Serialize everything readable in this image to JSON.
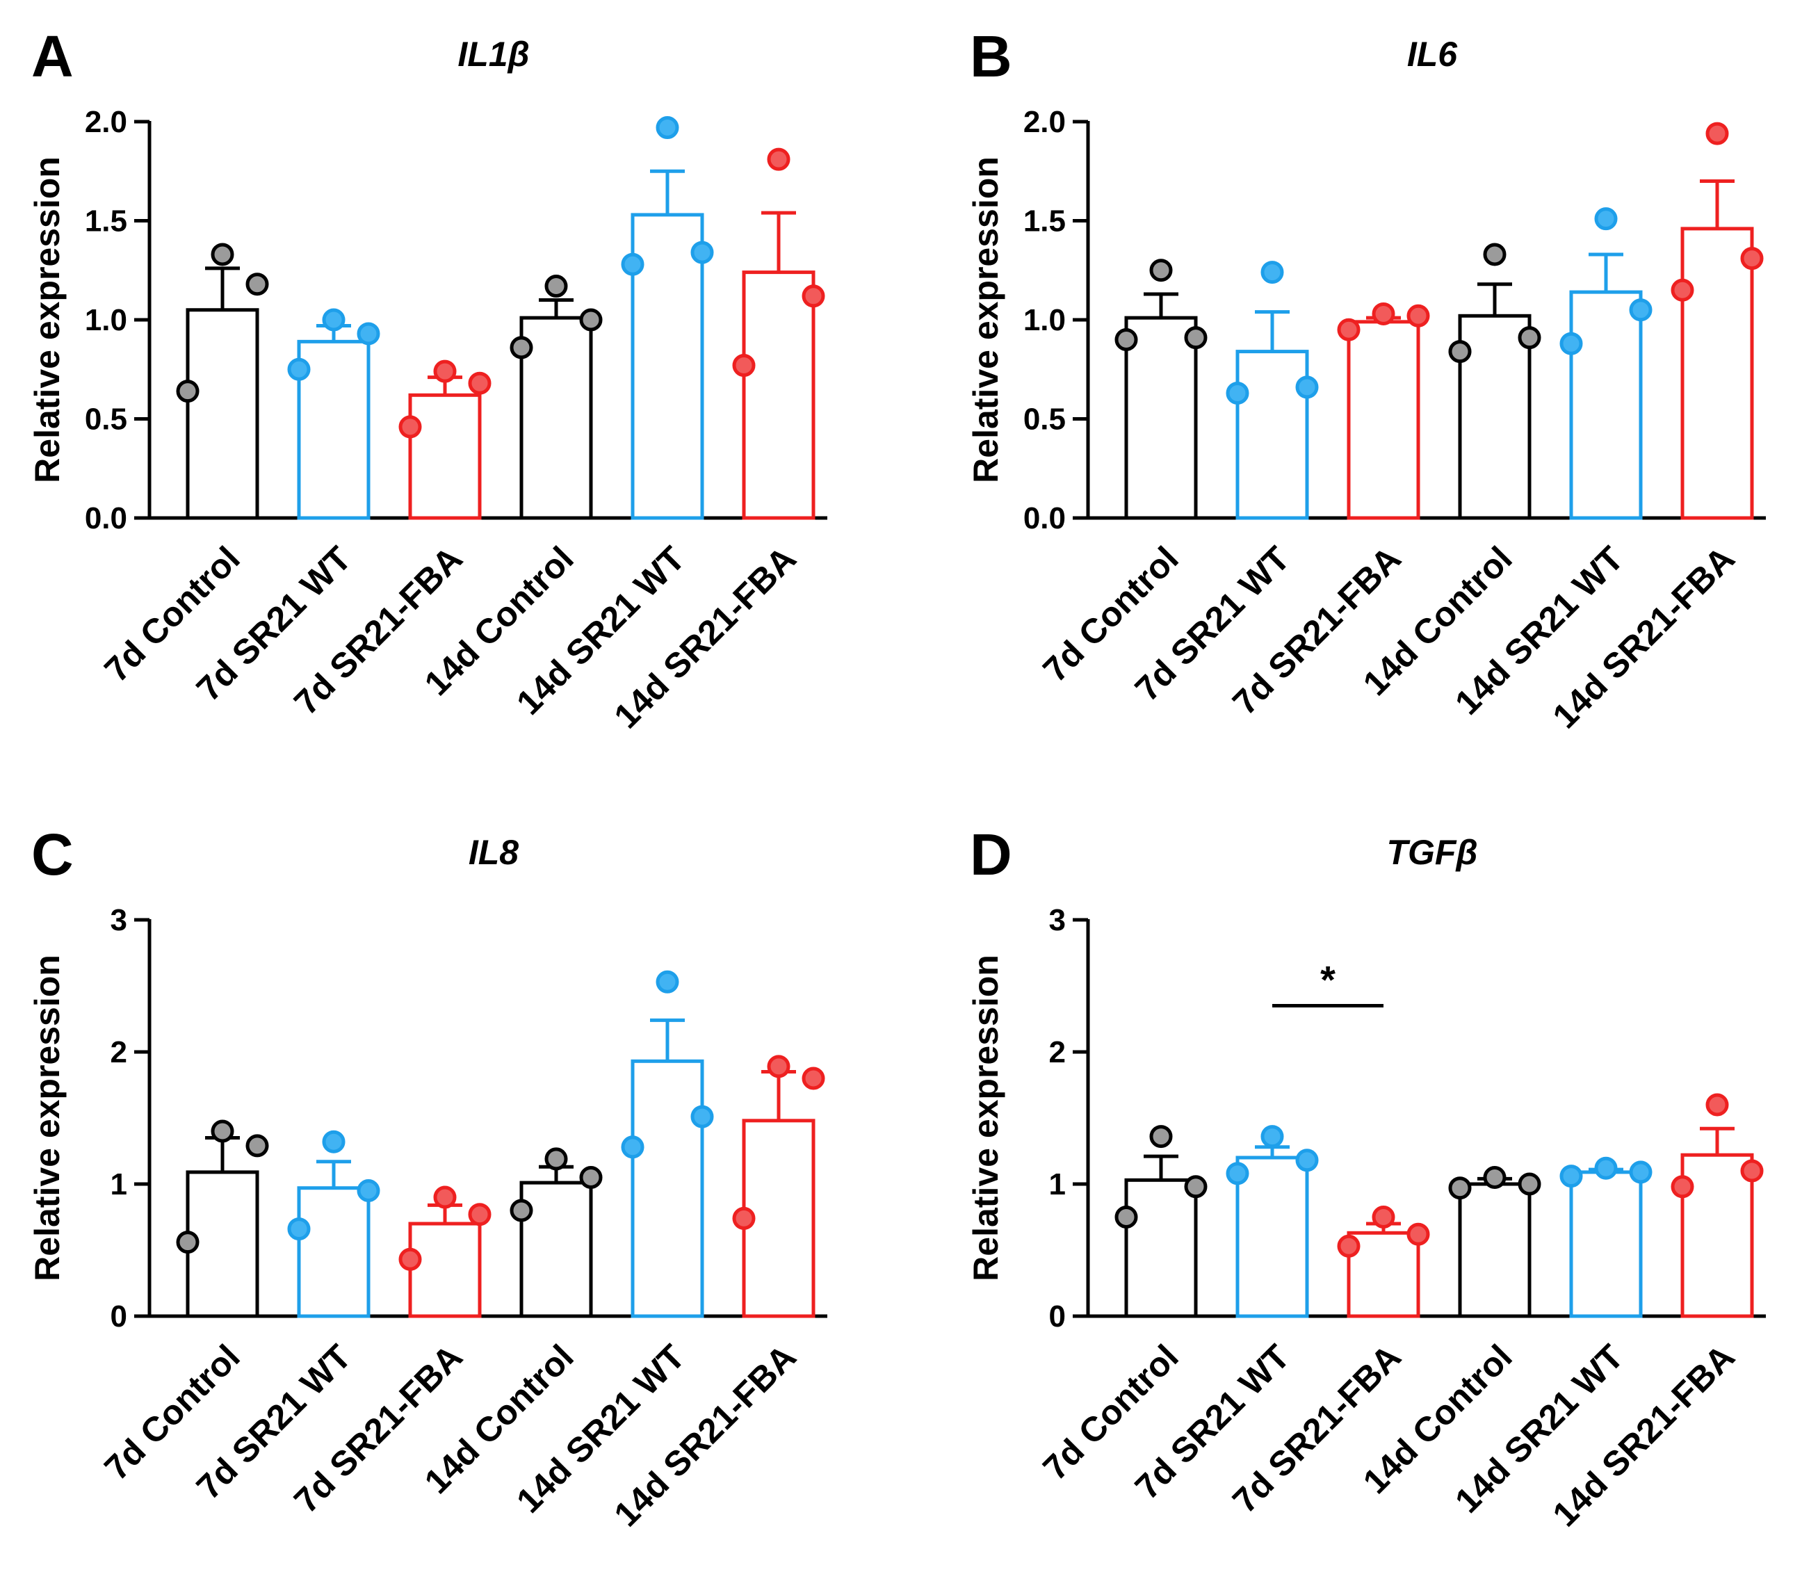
{
  "colors": {
    "black": "#000000",
    "blue": "#1E9FEA",
    "red": "#EE2020",
    "dot_gray": "#9B9B9B",
    "dot_blue": "#41B3F3",
    "dot_red": "#F25A5A"
  },
  "chart_data": [
    {
      "type": "bar",
      "panel": "A",
      "title": "IL1β",
      "ylabel": "Relative expression",
      "xlabel": "",
      "ylim": [
        0,
        2.0
      ],
      "yticks": [
        "0.0",
        "0.5",
        "1.0",
        "1.5",
        "2.0"
      ],
      "categories": [
        "7d Control",
        "7d SR21 WT",
        "7d SR21-FBA",
        "14d Control",
        "14d SR21 WT",
        "14d SR21-FBA"
      ],
      "bar_colors": [
        "black",
        "blue",
        "red",
        "black",
        "blue",
        "red"
      ],
      "values": [
        1.05,
        0.89,
        0.62,
        1.01,
        1.53,
        1.24
      ],
      "sem": [
        0.21,
        0.08,
        0.09,
        0.09,
        0.22,
        0.3
      ],
      "points": [
        [
          1.33,
          1.18,
          0.64
        ],
        [
          1.0,
          0.93,
          0.75
        ],
        [
          0.74,
          0.68,
          0.46
        ],
        [
          1.17,
          1.0,
          0.86
        ],
        [
          1.97,
          1.34,
          1.28
        ],
        [
          1.81,
          1.12,
          0.77
        ]
      ],
      "significance": []
    },
    {
      "type": "bar",
      "panel": "B",
      "title": "IL6",
      "ylabel": "Relative expression",
      "xlabel": "",
      "ylim": [
        0,
        2.0
      ],
      "yticks": [
        "0.0",
        "0.5",
        "1.0",
        "1.5",
        "2.0"
      ],
      "categories": [
        "7d Control",
        "7d SR21 WT",
        "7d SR21-FBA",
        "14d Control",
        "14d SR21 WT",
        "14d SR21-FBA"
      ],
      "bar_colors": [
        "black",
        "blue",
        "red",
        "black",
        "blue",
        "red"
      ],
      "values": [
        1.01,
        0.84,
        0.99,
        1.02,
        1.14,
        1.46
      ],
      "sem": [
        0.12,
        0.2,
        0.02,
        0.16,
        0.19,
        0.24
      ],
      "points": [
        [
          1.25,
          0.91,
          0.9
        ],
        [
          1.24,
          0.66,
          0.63
        ],
        [
          1.03,
          1.02,
          0.95
        ],
        [
          1.33,
          0.91,
          0.84
        ],
        [
          1.51,
          1.05,
          0.88
        ],
        [
          1.94,
          1.31,
          1.15
        ]
      ],
      "significance": []
    },
    {
      "type": "bar",
      "panel": "C",
      "title": "IL8",
      "ylabel": "Relative expression",
      "xlabel": "",
      "ylim": [
        0,
        3
      ],
      "yticks": [
        "0",
        "1",
        "2",
        "3"
      ],
      "categories": [
        "7d Control",
        "7d SR21 WT",
        "7d SR21-FBA",
        "14d Control",
        "14d SR21 WT",
        "14d SR21-FBA"
      ],
      "bar_colors": [
        "black",
        "blue",
        "red",
        "black",
        "blue",
        "red"
      ],
      "values": [
        1.09,
        0.97,
        0.7,
        1.01,
        1.93,
        1.48
      ],
      "sem": [
        0.26,
        0.2,
        0.14,
        0.12,
        0.31,
        0.37
      ],
      "points": [
        [
          1.4,
          1.29,
          0.56
        ],
        [
          1.32,
          0.95,
          0.66
        ],
        [
          0.9,
          0.77,
          0.43
        ],
        [
          1.19,
          1.05,
          0.8
        ],
        [
          2.53,
          1.51,
          1.28
        ],
        [
          1.89,
          1.8,
          0.74
        ]
      ],
      "significance": []
    },
    {
      "type": "bar",
      "panel": "D",
      "title": "TGFβ",
      "ylabel": "Relative expression",
      "xlabel": "",
      "ylim": [
        0,
        3
      ],
      "yticks": [
        "0",
        "1",
        "2",
        "3"
      ],
      "categories": [
        "7d Control",
        "7d SR21 WT",
        "7d SR21-FBA",
        "14d Control",
        "14d SR21 WT",
        "14d SR21-FBA"
      ],
      "bar_colors": [
        "black",
        "blue",
        "red",
        "black",
        "blue",
        "red"
      ],
      "values": [
        1.03,
        1.2,
        0.63,
        1.0,
        1.09,
        1.22
      ],
      "sem": [
        0.18,
        0.08,
        0.07,
        0.04,
        0.02,
        0.2
      ],
      "points": [
        [
          1.36,
          0.98,
          0.75
        ],
        [
          1.36,
          1.18,
          1.08
        ],
        [
          0.75,
          0.62,
          0.53
        ],
        [
          1.05,
          1.0,
          0.97
        ],
        [
          1.12,
          1.09,
          1.06
        ],
        [
          1.6,
          1.1,
          0.98
        ]
      ],
      "significance": [
        {
          "from": 1,
          "to": 2,
          "level": 2.35,
          "label": "*"
        }
      ]
    }
  ]
}
